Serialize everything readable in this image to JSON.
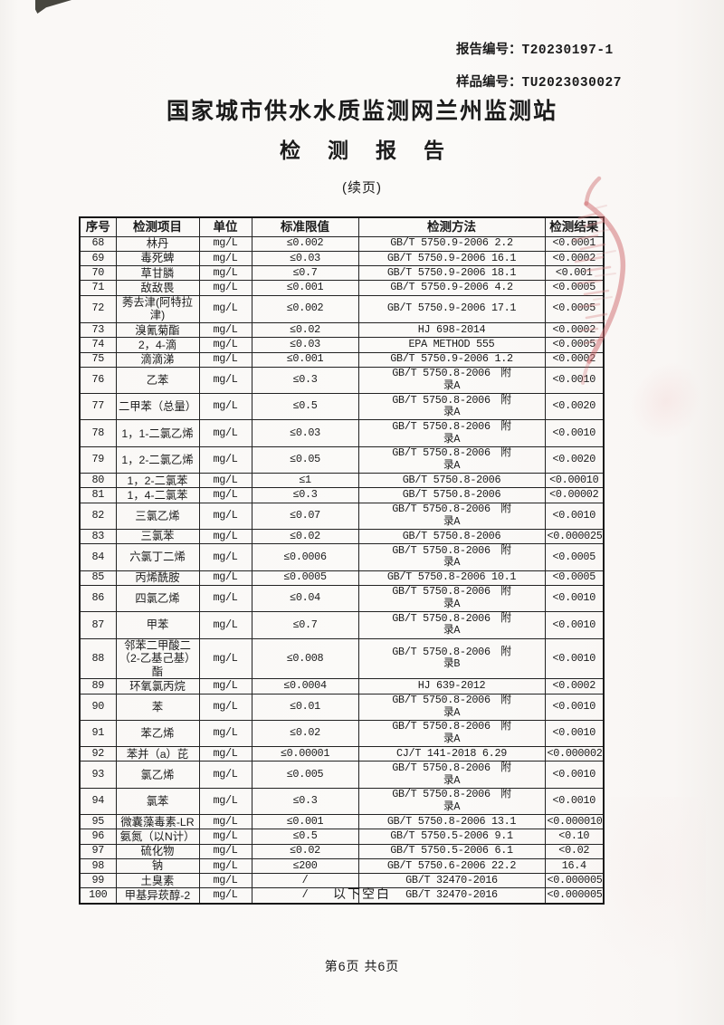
{
  "page": {
    "report_no_label": "报告编号：",
    "report_no": "T20230197-1",
    "sample_no_label": "样品编号：",
    "sample_no": "TU2023030027",
    "title": "国家城市供水水质监测网兰州监测站",
    "subtitle": "检测报告",
    "continuation": "(续页)",
    "below_blank": "以下空白",
    "page_footer": "第6页 共6页"
  },
  "stamp": {
    "name": "red-seal-partial",
    "color": "#cf6a6e"
  },
  "table": {
    "headers": [
      "序号",
      "检测项目",
      "单位",
      "标准限值",
      "检测方法",
      "检测结果"
    ],
    "rows": [
      [
        "68",
        "林丹",
        "mg/L",
        "≤0.002",
        "GB/T 5750.9-2006 2.2",
        "<0.0001"
      ],
      [
        "69",
        "毒死蜱",
        "mg/L",
        "≤0.03",
        "GB/T 5750.9-2006 16.1",
        "<0.0002"
      ],
      [
        "70",
        "草甘膦",
        "mg/L",
        "≤0.7",
        "GB/T 5750.9-2006 18.1",
        "<0.001"
      ],
      [
        "71",
        "敌敌畏",
        "mg/L",
        "≤0.001",
        "GB/T 5750.9-2006 4.2",
        "<0.0005"
      ],
      [
        "72",
        "莠去津(阿特拉津)",
        "mg/L",
        "≤0.002",
        "GB/T 5750.9-2006 17.1",
        "<0.0005"
      ],
      [
        "73",
        "溴氰菊酯",
        "mg/L",
        "≤0.02",
        "HJ 698-2014",
        "<0.0002"
      ],
      [
        "74",
        "2，4-滴",
        "mg/L",
        "≤0.03",
        "EPA METHOD 555",
        "<0.0005"
      ],
      [
        "75",
        "滴滴涕",
        "mg/L",
        "≤0.001",
        "GB/T 5750.9-2006 1.2",
        "<0.0002"
      ],
      [
        "76",
        "乙苯",
        "mg/L",
        "≤0.3",
        "GB/T 5750.8-2006　附\n录A",
        "<0.0010"
      ],
      [
        "77",
        "二甲苯（总量）",
        "mg/L",
        "≤0.5",
        "GB/T 5750.8-2006　附\n录A",
        "<0.0020"
      ],
      [
        "78",
        "1，1-二氯乙烯",
        "mg/L",
        "≤0.03",
        "GB/T 5750.8-2006　附\n录A",
        "<0.0010"
      ],
      [
        "79",
        "1，2-二氯乙烯",
        "mg/L",
        "≤0.05",
        "GB/T 5750.8-2006　附\n录A",
        "<0.0020"
      ],
      [
        "80",
        "1，2-二氯苯",
        "mg/L",
        "≤1",
        "GB/T 5750.8-2006",
        "<0.00010"
      ],
      [
        "81",
        "1，4-二氯苯",
        "mg/L",
        "≤0.3",
        "GB/T 5750.8-2006",
        "<0.00002"
      ],
      [
        "82",
        "三氯乙烯",
        "mg/L",
        "≤0.07",
        "GB/T 5750.8-2006　附\n录A",
        "<0.0010"
      ],
      [
        "83",
        "三氯苯",
        "mg/L",
        "≤0.02",
        "GB/T 5750.8-2006",
        "<0.000025"
      ],
      [
        "84",
        "六氯丁二烯",
        "mg/L",
        "≤0.0006",
        "GB/T 5750.8-2006　附\n录A",
        "<0.0005"
      ],
      [
        "85",
        "丙烯酰胺",
        "mg/L",
        "≤0.0005",
        "GB/T 5750.8-2006 10.1",
        "<0.0005"
      ],
      [
        "86",
        "四氯乙烯",
        "mg/L",
        "≤0.04",
        "GB/T 5750.8-2006　附\n录A",
        "<0.0010"
      ],
      [
        "87",
        "甲苯",
        "mg/L",
        "≤0.7",
        "GB/T 5750.8-2006　附\n录A",
        "<0.0010"
      ],
      [
        "88",
        "邻苯二甲酸二（2-乙基己基）酯",
        "mg/L",
        "≤0.008",
        "GB/T 5750.8-2006　附\n录B",
        "<0.0010"
      ],
      [
        "89",
        "环氧氯丙烷",
        "mg/L",
        "≤0.0004",
        "HJ 639-2012",
        "<0.0002"
      ],
      [
        "90",
        "苯",
        "mg/L",
        "≤0.01",
        "GB/T 5750.8-2006　附\n录A",
        "<0.0010"
      ],
      [
        "91",
        "苯乙烯",
        "mg/L",
        "≤0.02",
        "GB/T 5750.8-2006　附\n录A",
        "<0.0010"
      ],
      [
        "92",
        "苯并（a）芘",
        "mg/L",
        "≤0.00001",
        "CJ/T 141-2018 6.29",
        "<0.000002"
      ],
      [
        "93",
        "氯乙烯",
        "mg/L",
        "≤0.005",
        "GB/T 5750.8-2006　附\n录A",
        "<0.0010"
      ],
      [
        "94",
        "氯苯",
        "mg/L",
        "≤0.3",
        "GB/T 5750.8-2006　附\n录A",
        "<0.0010"
      ],
      [
        "95",
        "微囊藻毒素-LR",
        "mg/L",
        "≤0.001",
        "GB/T 5750.8-2006 13.1",
        "<0.000010"
      ],
      [
        "96",
        "氨氮（以N计）",
        "mg/L",
        "≤0.5",
        "GB/T 5750.5-2006 9.1",
        "<0.10"
      ],
      [
        "97",
        "硫化物",
        "mg/L",
        "≤0.02",
        "GB/T 5750.5-2006 6.1",
        "<0.02"
      ],
      [
        "98",
        "钠",
        "mg/L",
        "≤200",
        "GB/T 5750.6-2006 22.2",
        "16.4"
      ],
      [
        "99",
        "土臭素",
        "mg/L",
        "/",
        "GB/T 32470-2016",
        "<0.000005"
      ],
      [
        "100",
        "甲基异莰醇-2",
        "mg/L",
        "/",
        "GB/T 32470-2016",
        "<0.000005"
      ]
    ]
  }
}
